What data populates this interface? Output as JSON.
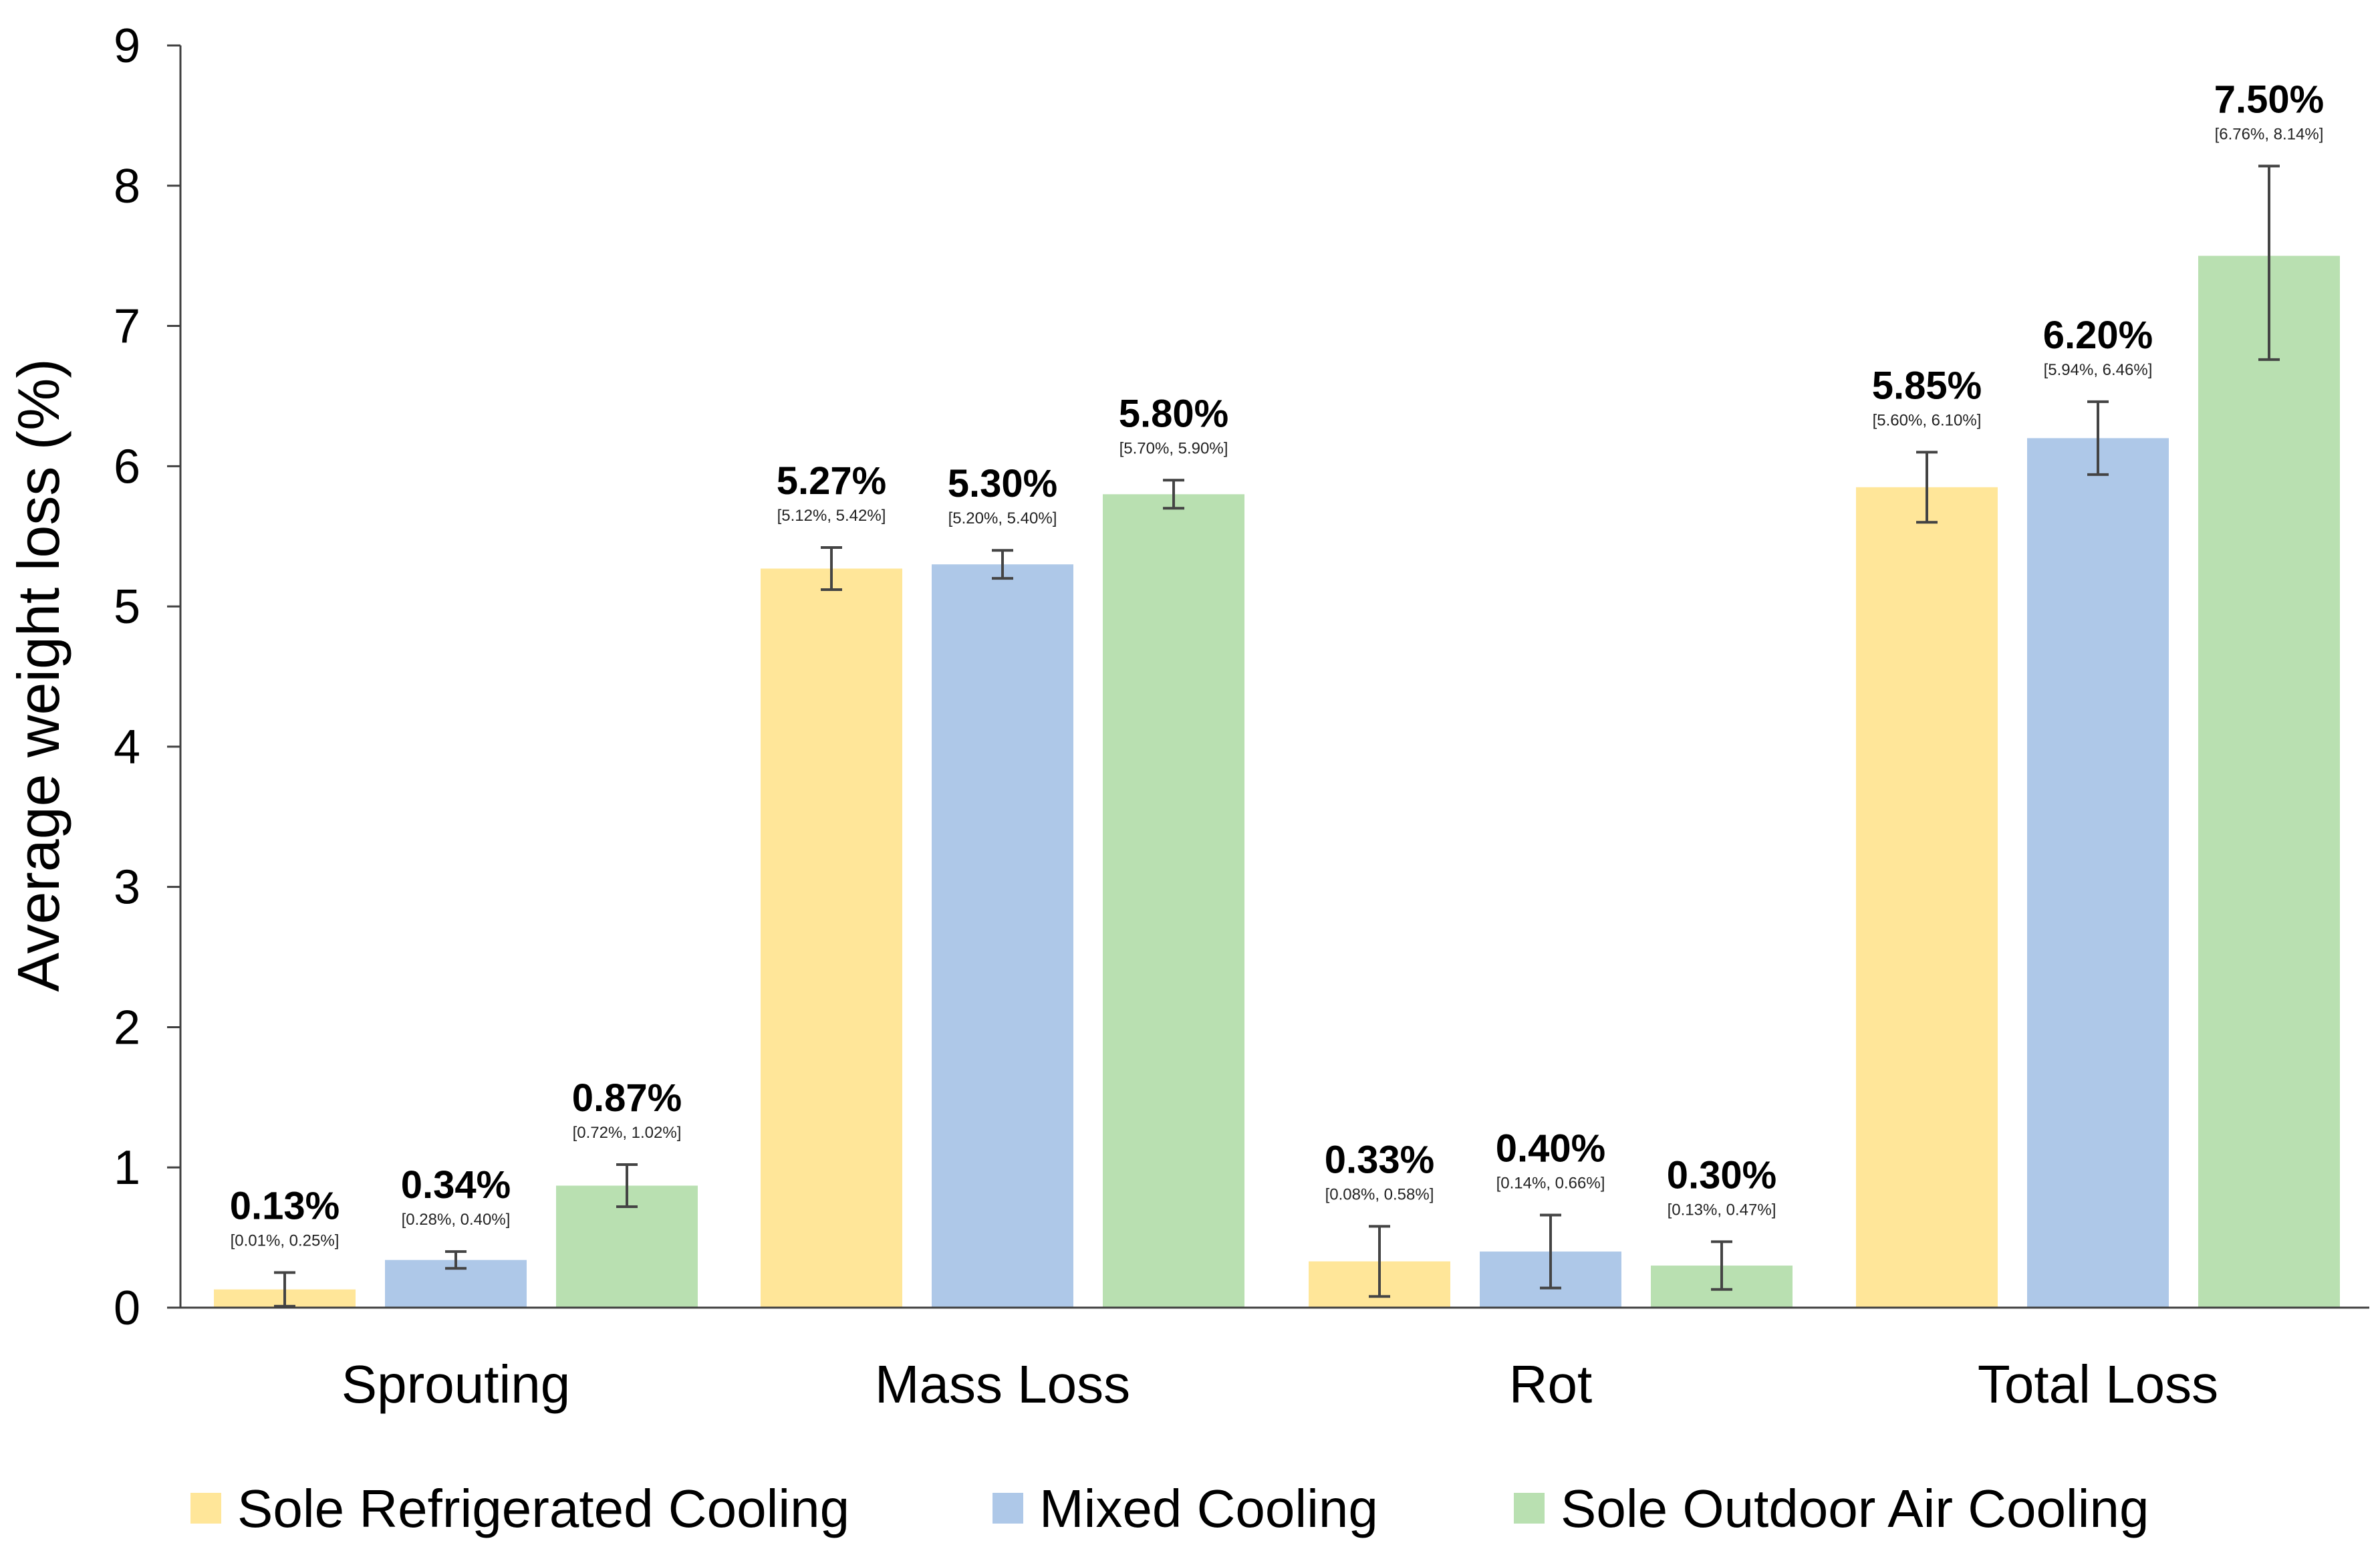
{
  "chart_data": {
    "type": "bar",
    "title": "",
    "xlabel": "",
    "ylabel": "Average weight loss (%)",
    "ylim": [
      0,
      9
    ],
    "yticks": [
      0,
      1,
      2,
      3,
      4,
      5,
      6,
      7,
      8,
      9
    ],
    "grid": false,
    "legend_position": "bottom",
    "categories": [
      "Sprouting",
      "Mass Loss",
      "Rot",
      "Total Loss"
    ],
    "series": [
      {
        "name": "Sole Refrigerated Cooling",
        "color": "#FFE699",
        "values": [
          0.13,
          5.27,
          0.33,
          5.85
        ],
        "lower": [
          0.01,
          5.12,
          0.08,
          5.6
        ],
        "upper": [
          0.25,
          5.42,
          0.58,
          6.1
        ],
        "labels": [
          "0.13%",
          "5.27%",
          "0.33%",
          "5.85%"
        ],
        "ci_labels": [
          "[0.01%, 0.25%]",
          "[5.12%, 5.42%]",
          "[0.08%, 0.58%]",
          "[5.60%, 6.10%]"
        ]
      },
      {
        "name": "Mixed Cooling",
        "color": "#AEC8E8",
        "values": [
          0.34,
          5.3,
          0.4,
          6.2
        ],
        "lower": [
          0.28,
          5.2,
          0.14,
          5.94
        ],
        "upper": [
          0.4,
          5.4,
          0.66,
          6.46
        ],
        "labels": [
          "0.34%",
          "5.30%",
          "0.40%",
          "6.20%"
        ],
        "ci_labels": [
          "[0.28%, 0.40%]",
          "[5.20%, 5.40%]",
          "[0.14%, 0.66%]",
          "[5.94%, 6.46%]"
        ]
      },
      {
        "name": "Sole Outdoor Air Cooling",
        "color": "#B9E0B1",
        "values": [
          0.87,
          5.8,
          0.3,
          7.5
        ],
        "lower": [
          0.72,
          5.7,
          0.13,
          6.76
        ],
        "upper": [
          1.02,
          5.9,
          0.47,
          8.14
        ],
        "labels": [
          "0.87%",
          "5.80%",
          "0.30%",
          "7.50%"
        ],
        "ci_labels": [
          "[0.72%, 1.02%]",
          "[5.70%, 5.90%]",
          "[0.13%, 0.47%]",
          "[6.76%, 8.14%]"
        ]
      }
    ]
  }
}
